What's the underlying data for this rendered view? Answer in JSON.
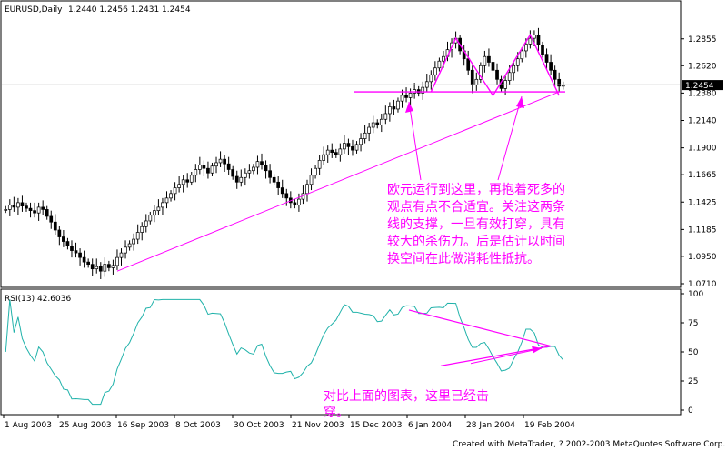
{
  "chart_data": [
    {
      "type": "candlestick",
      "title": "EURUSD,Daily",
      "ohlc_readout": "1.2440 1.2456 1.2431 1.2454",
      "current_price_label": "1.2454",
      "current_price": 1.2454,
      "ylim": [
        1.071,
        1.31
      ],
      "y_ticks": [
        "1.2855",
        "1.2620",
        "1.2380",
        "1.2140",
        "1.1900",
        "1.1665",
        "1.1425",
        "1.1185",
        "1.0950",
        "1.0710"
      ],
      "x_ticks": [
        "1 Aug 2003",
        "25 Aug 2003",
        "16 Sep 2003",
        "8 Oct 2003",
        "30 Oct 2003",
        "21 Nov 2003",
        "15 Dec 2003",
        "6 Jan 2004",
        "28 Jan 2004",
        "19 Feb 2004"
      ],
      "close_series": [
        1.136,
        1.14,
        1.138,
        1.142,
        1.139,
        1.137,
        1.135,
        1.133,
        1.138,
        1.136,
        1.13,
        1.125,
        1.118,
        1.112,
        1.108,
        1.104,
        1.1,
        1.098,
        1.094,
        1.09,
        1.088,
        1.084,
        1.086,
        1.082,
        1.088,
        1.085,
        1.087,
        1.094,
        1.098,
        1.103,
        1.106,
        1.11,
        1.116,
        1.121,
        1.126,
        1.131,
        1.135,
        1.138,
        1.142,
        1.146,
        1.15,
        1.155,
        1.158,
        1.162,
        1.16,
        1.166,
        1.171,
        1.175,
        1.172,
        1.168,
        1.174,
        1.177,
        1.18,
        1.176,
        1.171,
        1.165,
        1.16,
        1.164,
        1.168,
        1.17,
        1.173,
        1.178,
        1.175,
        1.17,
        1.164,
        1.16,
        1.155,
        1.15,
        1.146,
        1.142,
        1.14,
        1.145,
        1.15,
        1.158,
        1.166,
        1.172,
        1.179,
        1.184,
        1.188,
        1.186,
        1.184,
        1.189,
        1.194,
        1.191,
        1.188,
        1.193,
        1.198,
        1.203,
        1.208,
        1.212,
        1.21,
        1.215,
        1.22,
        1.226,
        1.224,
        1.231,
        1.236,
        1.234,
        1.238,
        1.241,
        1.238,
        1.243,
        1.248,
        1.254,
        1.26,
        1.266,
        1.27,
        1.276,
        1.282,
        1.286,
        1.275,
        1.268,
        1.258,
        1.245,
        1.25,
        1.262,
        1.27,
        1.265,
        1.258,
        1.25,
        1.242,
        1.249,
        1.256,
        1.262,
        1.268,
        1.275,
        1.281,
        1.286,
        1.289,
        1.28,
        1.272,
        1.265,
        1.258,
        1.25,
        1.244,
        1.245
      ],
      "neckline": 1.2454,
      "annotation": "欧元运行到这里，再抱着死多的观点有点不合适宜。关注这两条线的支撑，一旦有效打穿，具有较大的杀伤力。后是估计以时间换空间在此做消耗性抵抗。"
    },
    {
      "type": "line",
      "title": "RSI(13) 42.6036",
      "ylim": [
        0,
        100
      ],
      "y_ticks": [
        "100",
        "75",
        "50",
        "25",
        "0"
      ],
      "annotation": "对比上面的图表，这里已经击穿。"
    }
  ],
  "footer": "Created with MetaTrader, ? 2002-2003 MetaQuotes Software Corp."
}
